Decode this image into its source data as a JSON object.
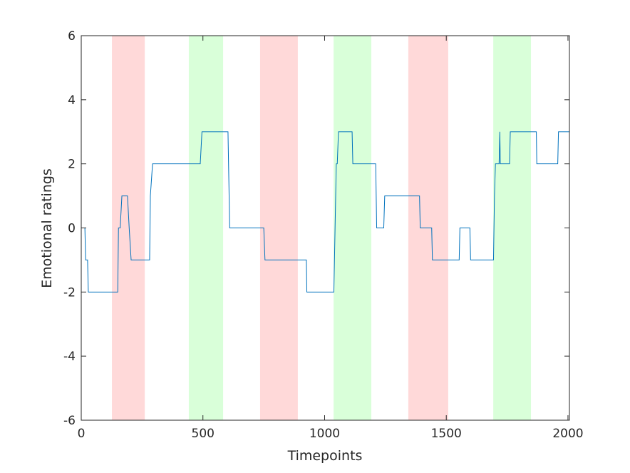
{
  "chart_data": {
    "type": "line",
    "xlabel": "Timepoints",
    "ylabel": "Emotional ratings",
    "xlim": [
      0,
      2006
    ],
    "ylim": [
      -6,
      6
    ],
    "xticks": [
      0,
      500,
      1000,
      1500,
      2000
    ],
    "yticks": [
      -6,
      -4,
      -2,
      0,
      2,
      4,
      6
    ],
    "bands": [
      {
        "start": 126,
        "end": 261,
        "color": "#ffd9d9"
      },
      {
        "start": 442,
        "end": 583,
        "color": "#d9ffd9"
      },
      {
        "start": 735,
        "end": 890,
        "color": "#ffd9d9"
      },
      {
        "start": 1037,
        "end": 1192,
        "color": "#d9ffd9"
      },
      {
        "start": 1344,
        "end": 1508,
        "color": "#ffd9d9"
      },
      {
        "start": 1693,
        "end": 1848,
        "color": "#d9ffd9"
      }
    ],
    "series": [
      {
        "color": "#0072bd",
        "x": [
          0,
          15,
          18,
          26,
          29,
          150,
          153,
          160,
          167,
          190,
          197,
          205,
          281,
          284,
          293,
          489,
          496,
          603,
          610,
          750,
          755,
          925,
          927,
          1038,
          1043,
          1048,
          1052,
          1057,
          1113,
          1116,
          1210,
          1214,
          1243,
          1247,
          1390,
          1393,
          1440,
          1443,
          1553,
          1556,
          1597,
          1600,
          1694,
          1698,
          1702,
          1717,
          1720,
          1722,
          1760,
          1763,
          1870,
          1872,
          1958,
          1961,
          2006
        ],
        "values": [
          0,
          0,
          -1,
          -1,
          -2,
          -2,
          0,
          0,
          1,
          1,
          0,
          -1,
          -1,
          1,
          2,
          2,
          3,
          3,
          0,
          0,
          -1,
          -1,
          -2,
          -2,
          0,
          2,
          2,
          3,
          3,
          2,
          2,
          0,
          0,
          1,
          1,
          0,
          0,
          -1,
          -1,
          0,
          0,
          -1,
          -1,
          1,
          2,
          2,
          3,
          2,
          2,
          3,
          3,
          2,
          2,
          3,
          3
        ]
      }
    ]
  }
}
